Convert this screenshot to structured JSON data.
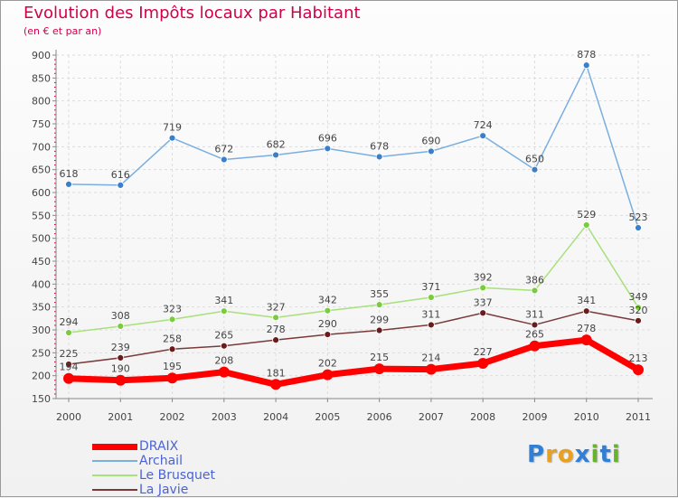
{
  "header": {
    "title": "Evolution des Impôts locaux par Habitant",
    "subtitle": "(en € et par an)"
  },
  "logo": {
    "letters": [
      "P",
      "r",
      "o",
      "x",
      "i",
      "t",
      "i"
    ]
  },
  "colors": {
    "title": "#d2004b",
    "grid": "#dddddd",
    "axis": "#888888",
    "tick_label": "#444444",
    "legend_text": "#4a63d6",
    "logo_letters": [
      "#2f7fd6",
      "#e8a020",
      "#e8a020",
      "#2f7fd6",
      "#66b32e",
      "#2f7fd6",
      "#66b32e"
    ]
  },
  "chart_data": {
    "type": "line",
    "title": "Evolution des Impôts locaux par Habitant",
    "subtitle": "(en € et par an)",
    "xlabel": "",
    "ylabel": "",
    "categories": [
      "2000",
      "2001",
      "2002",
      "2003",
      "2004",
      "2005",
      "2006",
      "2007",
      "2008",
      "2009",
      "2010",
      "2011"
    ],
    "ylim": [
      150,
      900
    ],
    "yticks": [
      150,
      200,
      250,
      300,
      350,
      400,
      450,
      500,
      550,
      600,
      650,
      700,
      750,
      800,
      850,
      900
    ],
    "grid": true,
    "legend_position": "bottom-left",
    "series": [
      {
        "name": "DRAIX",
        "color": "#ff0000",
        "marker_color": "#ff0000",
        "label_color": "#444444",
        "emphasis": true,
        "values": [
          194,
          190,
          195,
          208,
          181,
          202,
          215,
          214,
          227,
          265,
          278,
          213
        ]
      },
      {
        "name": "Archail",
        "color": "#7aaee0",
        "marker_color": "#3a7fc8",
        "label_color": "#444444",
        "emphasis": false,
        "values": [
          618,
          616,
          719,
          672,
          682,
          696,
          678,
          690,
          724,
          650,
          878,
          523
        ]
      },
      {
        "name": "Le Brusquet",
        "color": "#a8e07a",
        "marker_color": "#7acc3c",
        "label_color": "#444444",
        "emphasis": false,
        "values": [
          294,
          308,
          323,
          341,
          327,
          342,
          355,
          371,
          392,
          386,
          529,
          349
        ]
      },
      {
        "name": "La Javie",
        "color": "#7a3a3a",
        "marker_color": "#6a1c1c",
        "label_color": "#444444",
        "emphasis": false,
        "values": [
          225,
          239,
          258,
          265,
          278,
          290,
          299,
          311,
          337,
          311,
          341,
          320
        ]
      }
    ]
  }
}
